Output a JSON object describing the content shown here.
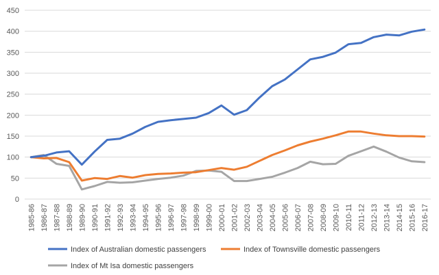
{
  "chart_data": {
    "type": "line",
    "title": "",
    "xlabel": "",
    "ylabel": "",
    "ylim": [
      0,
      450
    ],
    "yticks": [
      0,
      50,
      100,
      150,
      200,
      250,
      300,
      350,
      400,
      450
    ],
    "grid": true,
    "legend_position": "bottom",
    "categories": [
      "1985-86",
      "1986-87",
      "1987-88",
      "1988-89",
      "1989-90",
      "1990-91",
      "1991-92",
      "1992-93",
      "1993-94",
      "1994-95",
      "1995-96",
      "1996-97",
      "1997-98",
      "1998-99",
      "1999-00",
      "2000-01",
      "2001-02",
      "2002-03",
      "2003-04",
      "2004-05",
      "2005-06",
      "2006-07",
      "2007-08",
      "2008-09",
      "2009-10",
      "2010-11",
      "2011-12",
      "2012-13",
      "2013-14",
      "2014-15",
      "2015-16",
      "2016-17"
    ],
    "series": [
      {
        "name": "Index of Australian domestic passengers",
        "color": "#4472c4",
        "values": [
          100,
          103,
          111,
          114,
          82,
          113,
          141,
          144,
          156,
          172,
          184,
          188,
          191,
          194,
          205,
          223,
          201,
          212,
          242,
          269,
          285,
          309,
          333,
          339,
          349,
          369,
          372,
          386,
          392,
          390,
          399,
          404
        ]
      },
      {
        "name": "Index of Townsville domestic passengers",
        "color": "#ed7d31",
        "values": [
          100,
          97,
          98,
          88,
          44,
          50,
          48,
          55,
          51,
          57,
          60,
          61,
          63,
          64,
          69,
          74,
          70,
          77,
          91,
          105,
          116,
          128,
          137,
          144,
          152,
          161,
          161,
          156,
          152,
          150,
          150,
          149
        ]
      },
      {
        "name": "Index of Mt Isa domestic passengers",
        "color": "#a5a5a5",
        "values": [
          100,
          105,
          84,
          79,
          23,
          31,
          41,
          39,
          40,
          44,
          48,
          51,
          56,
          67,
          68,
          65,
          43,
          43,
          48,
          53,
          63,
          74,
          89,
          83,
          84,
          103,
          114,
          125,
          113,
          99,
          90,
          88
        ]
      }
    ]
  }
}
